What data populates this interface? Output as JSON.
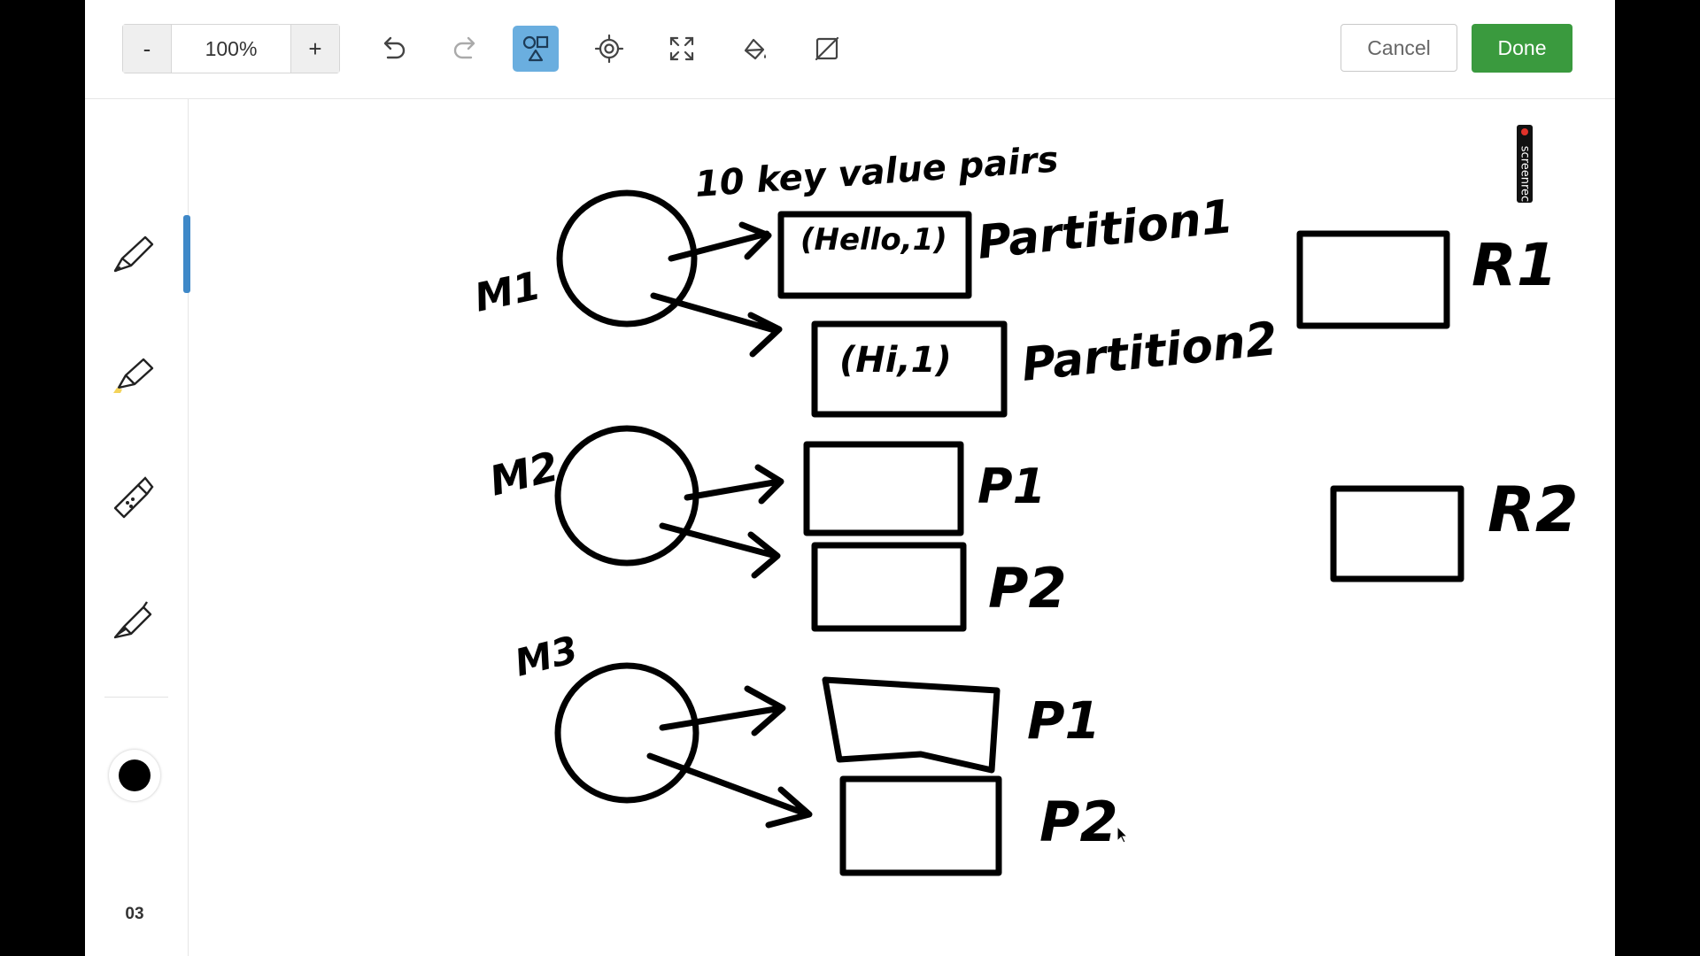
{
  "toolbar": {
    "zoom_out_label": "-",
    "zoom_value": "100%",
    "zoom_in_label": "+",
    "tools": [
      "undo-icon",
      "redo-icon",
      "shapes-icon",
      "target-icon",
      "fullscreen-icon",
      "fill-bucket-icon",
      "eraser-icon"
    ],
    "active_tool": "shapes-icon",
    "cancel_label": "Cancel",
    "done_label": "Done"
  },
  "sidebar": {
    "pens": [
      "pen-icon",
      "highlighter-icon",
      "dotted-marker-icon",
      "calligraphy-pen-icon"
    ],
    "selected_pen": "pen-icon",
    "stroke_color": "#000000",
    "stroke_size": "03"
  },
  "canvas": {
    "handwritten_labels": [
      "10 key value pairs",
      "M1",
      "(Hello,1)",
      "Partition1",
      "(Hi,1)",
      "Partition2",
      "M2",
      "P1",
      "P2",
      "M3",
      "P1",
      "P2",
      "R1",
      "R2"
    ]
  },
  "watermark": {
    "text": "screenrec"
  },
  "colors": {
    "done_button": "#3a9a3e",
    "active_tool": "#6aaedf",
    "pen_indicator": "#3e88c8"
  }
}
